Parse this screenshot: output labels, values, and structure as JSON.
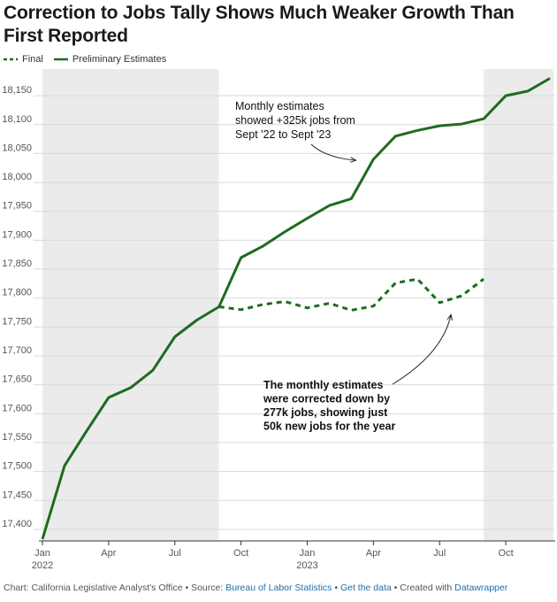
{
  "chart_data": {
    "type": "line",
    "title": "Correction to Jobs Tally Shows Much Weaker Growth Than First Reported",
    "xlabel": "",
    "ylabel": "",
    "ylim": [
      17380,
      18190
    ],
    "y_ticks": [
      "17,400",
      "17,450",
      "17,500",
      "17,550",
      "17,600",
      "17,650",
      "17,700",
      "17,750",
      "17,800",
      "17,850",
      "17,900",
      "17,950",
      "18,000",
      "18,050",
      "18,100",
      "18,150"
    ],
    "y_tick_values": [
      17400,
      17450,
      17500,
      17550,
      17600,
      17650,
      17700,
      17750,
      17800,
      17850,
      17900,
      17950,
      18000,
      18050,
      18100,
      18150
    ],
    "x_ticks": [
      {
        "month_index": 0,
        "label": "Jan",
        "sub": "2022"
      },
      {
        "month_index": 3,
        "label": "Apr",
        "sub": ""
      },
      {
        "month_index": 6,
        "label": "Jul",
        "sub": ""
      },
      {
        "month_index": 9,
        "label": "Oct",
        "sub": ""
      },
      {
        "month_index": 12,
        "label": "Jan",
        "sub": "2023"
      },
      {
        "month_index": 15,
        "label": "Apr",
        "sub": ""
      },
      {
        "month_index": 18,
        "label": "Jul",
        "sub": ""
      },
      {
        "month_index": 21,
        "label": "Oct",
        "sub": ""
      }
    ],
    "x_range_months": [
      0,
      23
    ],
    "shaded_periods": [
      [
        0,
        8
      ],
      [
        20,
        23
      ]
    ],
    "grid": true,
    "legend_position": "top-left",
    "series": [
      {
        "name": "Final",
        "style": "dashed",
        "color": "#1f6b1f",
        "x_months": [
          8,
          9,
          10,
          11,
          12,
          13,
          14,
          15,
          16,
          17,
          18,
          19,
          20
        ],
        "values": [
          17785,
          17780,
          17789,
          17794,
          17783,
          17791,
          17779,
          17786,
          17826,
          17833,
          17792,
          17804,
          17833
        ]
      },
      {
        "name": "Preliminary Estimates",
        "style": "solid",
        "color": "#1f6b1f",
        "x_months": [
          0,
          1,
          2,
          3,
          4,
          5,
          6,
          7,
          8,
          9,
          10,
          11,
          12,
          13,
          14,
          15,
          16,
          17,
          18,
          19,
          20,
          21,
          22,
          23
        ],
        "values": [
          17383,
          17510,
          17570,
          17628,
          17645,
          17675,
          17733,
          17762,
          17785,
          17870,
          17890,
          17915,
          17938,
          17960,
          17972,
          18040,
          18080,
          18090,
          18098,
          18101,
          18110,
          18150,
          18158,
          18180
        ]
      }
    ],
    "annotations": [
      {
        "lines": [
          "Monthly estimates",
          "showed +325k jobs from",
          "Sept '22 to Sept '23"
        ],
        "bold": false
      },
      {
        "lines": [
          "The monthly estimates",
          "were corrected down by",
          "277k jobs, showing just",
          "50k new jobs for the year"
        ],
        "bold": true
      }
    ]
  },
  "legend": {
    "final_label": "Final",
    "preliminary_label": "Preliminary Estimates"
  },
  "footer": {
    "prefix": "Chart: California Legislative Analyst's Office • Source: ",
    "source_link": "Bureau of Labor Statistics",
    "sep1": " • ",
    "data_link": "Get the data",
    "sep2": " • Created with ",
    "tool_link": "Datawrapper"
  },
  "colors": {
    "line": "#1f6b1f",
    "shade": "#ebebeb",
    "grid": "#d9d9d9"
  }
}
